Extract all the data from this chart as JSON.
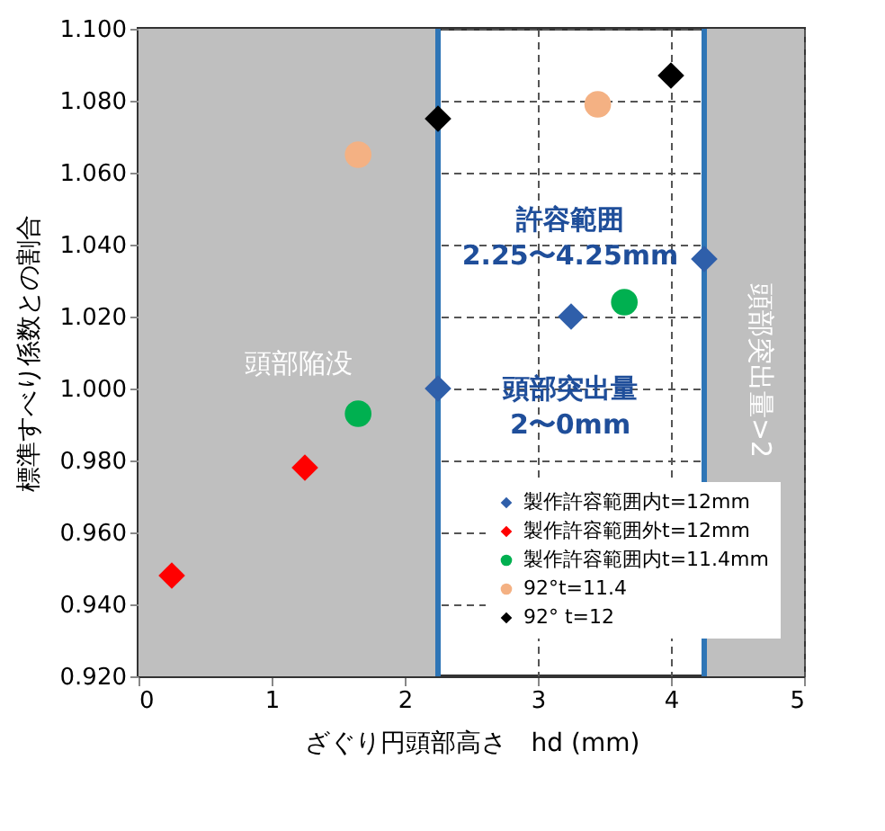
{
  "chart_data": {
    "type": "scatter",
    "xlabel": "ざぐり円頭部高さ　hd (mm)",
    "ylabel": "標準すべり係数との割合",
    "xlim": [
      0,
      5
    ],
    "xticks": [
      0,
      1,
      2,
      3,
      4,
      5
    ],
    "ylim": [
      0.92,
      1.1
    ],
    "yticks": [
      {
        "value": 0.92,
        "label": "0.920"
      },
      {
        "value": 0.94,
        "label": "0.940"
      },
      {
        "value": 0.96,
        "label": "0.960"
      },
      {
        "value": 0.98,
        "label": "0.980"
      },
      {
        "value": 1.0,
        "label": "1.000"
      },
      {
        "value": 1.02,
        "label": "1.020"
      },
      {
        "value": 1.04,
        "label": "1.040"
      },
      {
        "value": 1.06,
        "label": "1.060"
      },
      {
        "value": 1.08,
        "label": "1.080"
      },
      {
        "value": 1.1,
        "label": "1.100"
      }
    ],
    "grid": true,
    "legend": "bottom right",
    "series": [
      {
        "name": "製作許容範囲内t=12mm",
        "color": "#2f5faa",
        "marker": "diamond",
        "x": [
          2.25,
          3.25,
          4.25
        ],
        "values": [
          1.0,
          1.02,
          1.036
        ]
      },
      {
        "name": "製作許容範囲外t=12mm",
        "color": "#ff0000",
        "marker": "diamond",
        "x": [
          0.25,
          1.25
        ],
        "values": [
          0.948,
          0.978
        ]
      },
      {
        "name": "製作許容範囲内t=11.4mm",
        "color": "#00b050",
        "marker": "circle",
        "x": [
          1.65,
          3.65
        ],
        "values": [
          0.993,
          1.024
        ]
      },
      {
        "name": "92°t=11.4",
        "color": "#f4b183",
        "marker": "circle",
        "x": [
          1.65,
          3.45
        ],
        "values": [
          1.065,
          1.079
        ]
      },
      {
        "name": "92° t=12",
        "color": "#000000",
        "marker": "diamond",
        "x": [
          2.25,
          4.0
        ],
        "values": [
          1.075,
          1.087
        ]
      }
    ],
    "bands": [
      {
        "axis": "x",
        "from": 0,
        "to": 2.25,
        "color": "#bfbfbf"
      },
      {
        "axis": "x",
        "from": 4.25,
        "to": 5,
        "color": "#bfbfbf"
      }
    ],
    "ref_lines": [
      {
        "axis": "x",
        "value": 2.25,
        "color": "#2e75b6"
      },
      {
        "axis": "x",
        "value": 4.25,
        "color": "#2e75b6"
      }
    ],
    "annotations": [
      "頭部陥没",
      "許容範囲\n2.25〜4.25mm",
      "頭部突出量\n2〜0mm",
      "頭部突出量>2"
    ]
  }
}
